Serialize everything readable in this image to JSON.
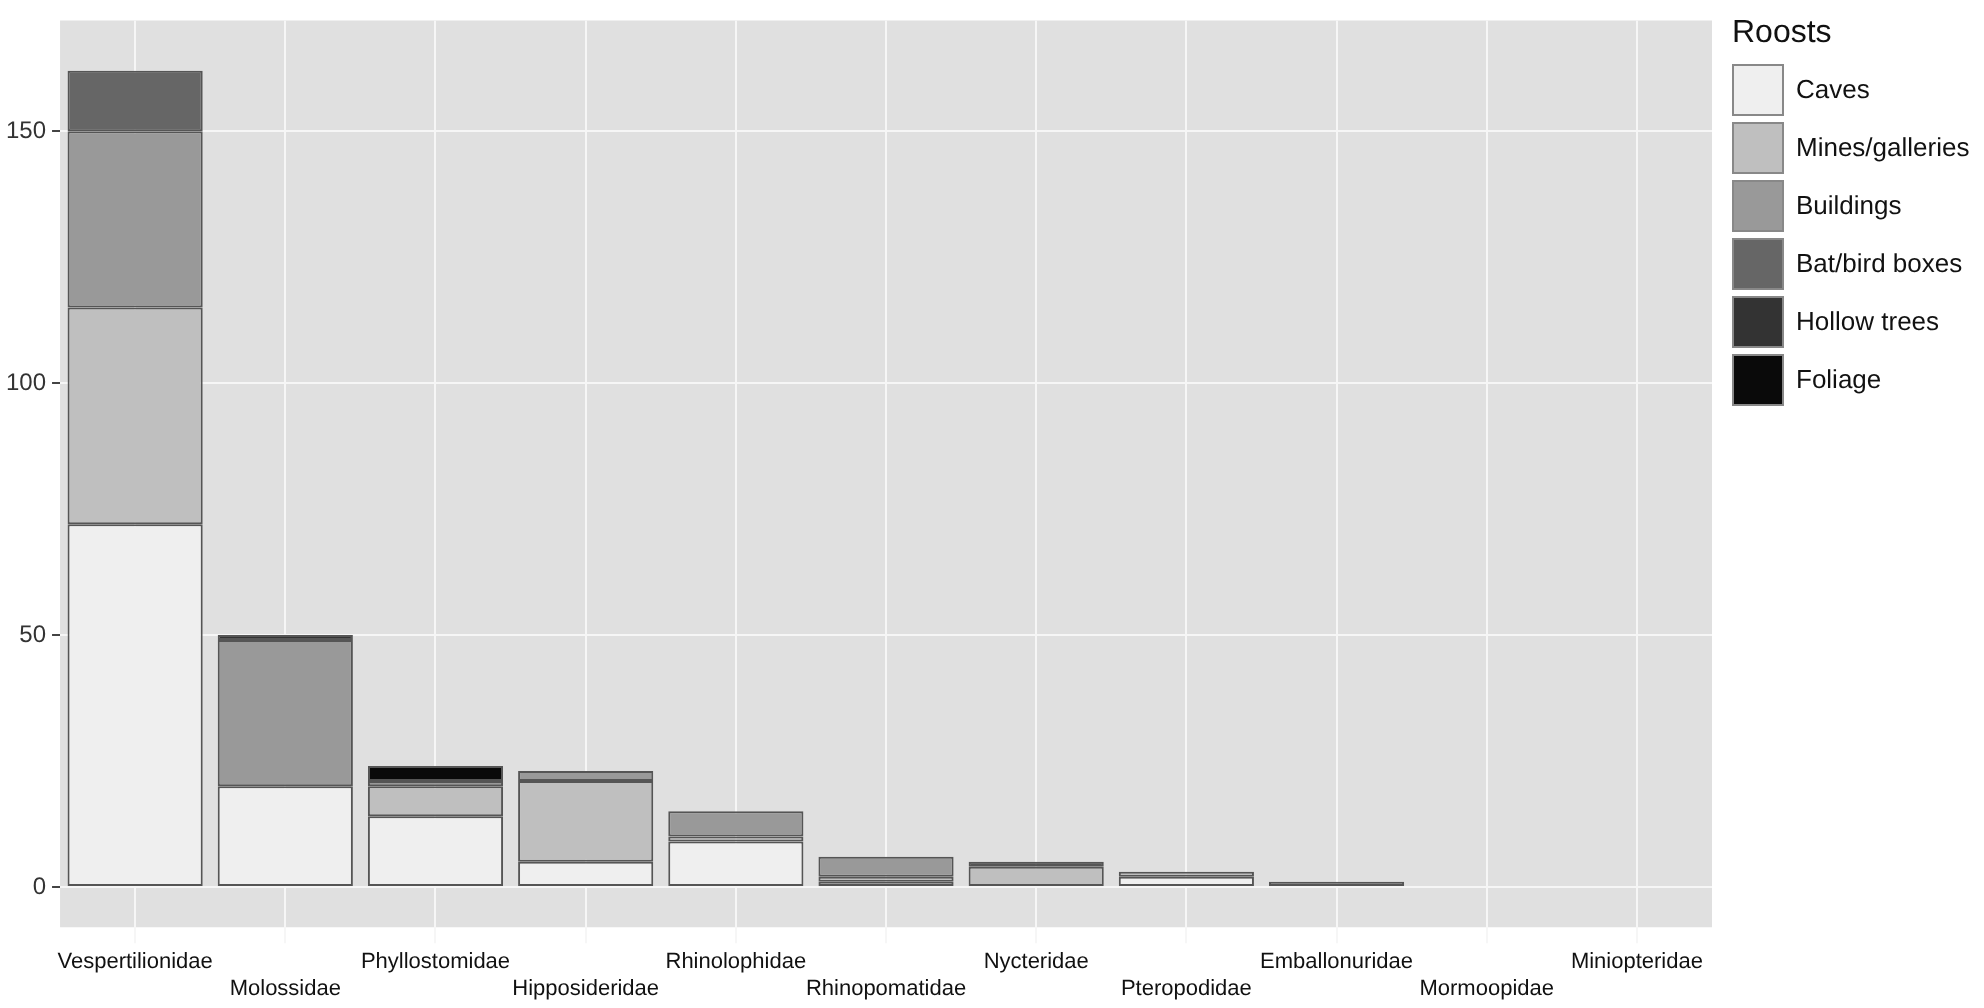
{
  "chart_data": {
    "type": "bar",
    "stacked": true,
    "legend_title": "Roosts",
    "legend": "right",
    "grid": true,
    "categories": [
      "Vespertilionidae",
      "Molossidae",
      "Phyllostomidae",
      "Hipposideridae",
      "Rhinolophidae",
      "Rhinopomatidae",
      "Nycteridae",
      "Pteropodidae",
      "Emballonuridae",
      "Mormoopidae",
      "Miniopteridae"
    ],
    "ylim": [
      -8,
      172
    ],
    "yticks": [
      0,
      50,
      100,
      150
    ],
    "series": [
      {
        "name": "Caves",
        "color": "#efefef",
        "values": [
          72,
          20,
          14,
          5,
          9,
          1,
          0,
          2,
          0,
          0,
          0
        ]
      },
      {
        "name": "Mines/galleries",
        "color": "#bfbfbf",
        "values": [
          43,
          0,
          6,
          16,
          1,
          1,
          4,
          1,
          0,
          0,
          0
        ]
      },
      {
        "name": "Buildings",
        "color": "#999999",
        "values": [
          35,
          29,
          1,
          2,
          5,
          4,
          0,
          0,
          1,
          0,
          0
        ]
      },
      {
        "name": "Bat/bird boxes",
        "color": "#666666",
        "values": [
          12,
          0,
          0,
          0,
          0,
          0,
          0,
          0,
          0,
          0,
          0
        ]
      },
      {
        "name": "Hollow trees",
        "color": "#333333",
        "values": [
          0,
          1,
          0,
          0,
          0,
          0,
          1,
          0,
          0,
          0,
          0
        ]
      },
      {
        "name": "Foliage",
        "color": "#0a0a0a",
        "values": [
          0,
          0,
          3,
          0,
          0,
          0,
          0,
          0,
          0,
          0,
          0
        ]
      }
    ]
  }
}
